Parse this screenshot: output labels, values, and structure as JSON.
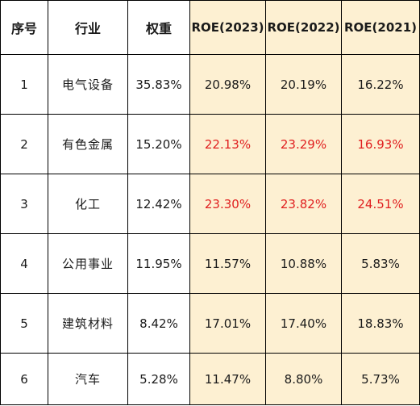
{
  "headers": {
    "index": "序号",
    "industry": "行业",
    "weight": "权重",
    "roe2023": "ROE(2023)",
    "roe2022": "ROE(2022)",
    "roe2021": "ROE(2021)"
  },
  "rows": [
    {
      "index": "1",
      "industry": "电气设备",
      "weight": "35.83%",
      "roe2023": "20.98%",
      "roe2022": "20.19%",
      "roe2021": "16.22%",
      "highlight": false
    },
    {
      "index": "2",
      "industry": "有色金属",
      "weight": "15.20%",
      "roe2023": "22.13%",
      "roe2022": "23.29%",
      "roe2021": "16.93%",
      "highlight": true
    },
    {
      "index": "3",
      "industry": "化工",
      "weight": "12.42%",
      "roe2023": "23.30%",
      "roe2022": "23.82%",
      "roe2021": "24.51%",
      "highlight": true
    },
    {
      "index": "4",
      "industry": "公用事业",
      "weight": "11.95%",
      "roe2023": "11.57%",
      "roe2022": "10.88%",
      "roe2021": "5.83%",
      "highlight": false
    },
    {
      "index": "5",
      "industry": "建筑材料",
      "weight": "8.42%",
      "roe2023": "17.01%",
      "roe2022": "17.40%",
      "roe2021": "18.83%",
      "highlight": false
    },
    {
      "index": "6",
      "industry": "汽车",
      "weight": "5.28%",
      "roe2023": "11.47%",
      "roe2022": "8.80%",
      "roe2021": "5.73%",
      "highlight": false
    }
  ],
  "colors": {
    "highlight_text": "#e02020",
    "roe_background": "#fdf0d2",
    "border": "#000000"
  }
}
